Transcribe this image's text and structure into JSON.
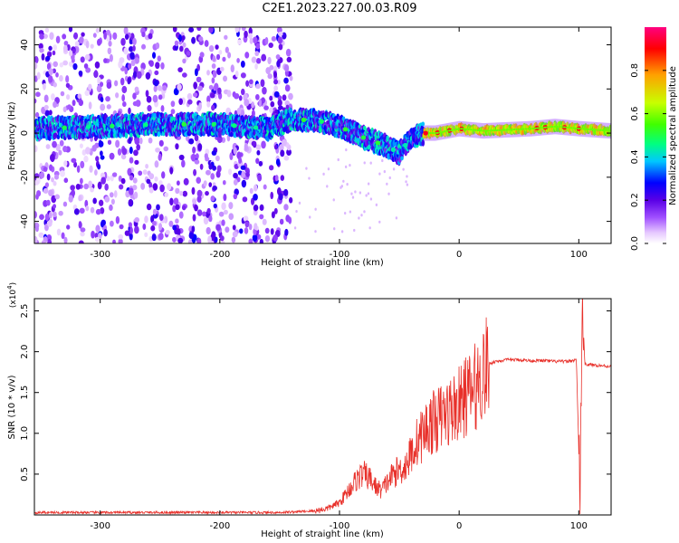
{
  "title": "C2E1.2023.227.00.03.R09",
  "colors": {
    "snr_line": "#e8302a",
    "colormap": [
      "#ffffff",
      "#e6c8ff",
      "#a050ff",
      "#5a00e6",
      "#0000ff",
      "#00c8ff",
      "#00ff80",
      "#40ff00",
      "#c8ff00",
      "#ffa000",
      "#ff0000",
      "#ff0080"
    ]
  },
  "chart_data": [
    {
      "type": "heatmap",
      "title": "",
      "xlabel": "Height of straight line (km)",
      "ylabel": "Frequency (Hz)",
      "xlim": [
        -355,
        127
      ],
      "ylim": [
        -50,
        48
      ],
      "xticks": [
        -300,
        -200,
        -100,
        0,
        100
      ],
      "yticks": [
        -40,
        -20,
        0,
        20,
        40
      ],
      "colorbar": {
        "label": "Normalized spectral amplitude",
        "range": [
          0.0,
          1.0
        ],
        "ticks": [
          "0.0",
          "0.2",
          "0.4",
          "0.6",
          "0.8"
        ],
        "tick_values": [
          0.0,
          0.2,
          0.4,
          0.6,
          0.8
        ]
      },
      "ridge": {
        "description_points_x_km": [
          -355,
          -300,
          -250,
          -200,
          -160,
          -140,
          -120,
          -100,
          -80,
          -60,
          -50,
          -40,
          -30,
          -20,
          0,
          20,
          60,
          80,
          100,
          127
        ],
        "frequency_hz": [
          2,
          3,
          4,
          4,
          2,
          6,
          6,
          3,
          -2,
          -6,
          -9,
          -2,
          0,
          0,
          2,
          1,
          2,
          3,
          2,
          1
        ]
      },
      "noise_band_x_km": [
        -355,
        -140
      ]
    },
    {
      "type": "line",
      "title": "",
      "xlabel": "Height of straight line (km)",
      "ylabel": "SNR (10 * v/v)",
      "scale_note": "(x10^4)",
      "xlim": [
        -355,
        127
      ],
      "ylim": [
        0,
        2.65
      ],
      "xticks": [
        -300,
        -200,
        -100,
        0,
        100
      ],
      "yticks": [
        0.5,
        1.0,
        1.5,
        2.0,
        2.5
      ],
      "series": [
        {
          "name": "SNR",
          "x": [
            -355,
            -200,
            -150,
            -120,
            -110,
            -100,
            -95,
            -90,
            -85,
            -80,
            -75,
            -70,
            -65,
            -60,
            -55,
            -50,
            -45,
            -40,
            -35,
            -30,
            -25,
            -20,
            -15,
            -10,
            -5,
            0,
            5,
            10,
            15,
            20,
            25,
            30,
            40,
            50,
            60,
            70,
            80,
            90,
            98,
            101,
            103,
            105,
            110,
            127
          ],
          "y": [
            0.03,
            0.03,
            0.03,
            0.05,
            0.08,
            0.15,
            0.25,
            0.35,
            0.45,
            0.5,
            0.45,
            0.35,
            0.3,
            0.4,
            0.5,
            0.55,
            0.6,
            0.75,
            0.9,
            1.0,
            1.1,
            1.15,
            1.2,
            1.25,
            1.3,
            1.35,
            1.45,
            1.5,
            1.6,
            1.75,
            1.85,
            1.88,
            1.9,
            1.9,
            1.89,
            1.89,
            1.88,
            1.88,
            1.9,
            0.25,
            2.65,
            1.85,
            1.84,
            1.82
          ]
        }
      ]
    }
  ]
}
